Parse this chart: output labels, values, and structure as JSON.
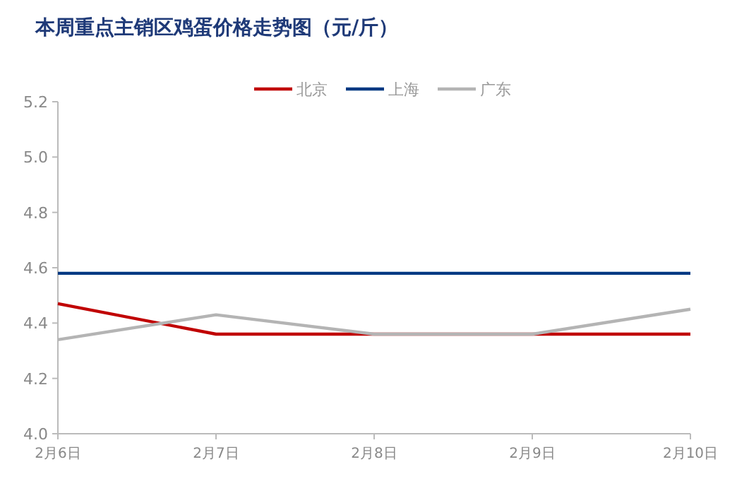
{
  "chart_data": {
    "type": "line",
    "title": "本周重点主销区鸡蛋价格走势图（元/斤）",
    "categories": [
      "2月6日",
      "2月7日",
      "2月8日",
      "2月9日",
      "2月10日"
    ],
    "series": [
      {
        "name": "北京",
        "color": "#c00000",
        "values": [
          4.47,
          4.36,
          4.36,
          4.36,
          4.36
        ]
      },
      {
        "name": "上海",
        "color": "#003882",
        "values": [
          4.58,
          4.58,
          4.58,
          4.58,
          4.58
        ]
      },
      {
        "name": "广东",
        "color": "#b4b4b4",
        "values": [
          4.34,
          4.43,
          4.36,
          4.36,
          4.45
        ]
      }
    ],
    "ylim": [
      4.0,
      5.2
    ],
    "yticks": [
      {
        "value": 4.0,
        "label": "4.0"
      },
      {
        "value": 4.2,
        "label": "4.2"
      },
      {
        "value": 4.4,
        "label": "4.4"
      },
      {
        "value": 4.6,
        "label": "4.6"
      },
      {
        "value": 4.8,
        "label": "4.8"
      },
      {
        "value": 5.0,
        "label": "5.0"
      },
      {
        "value": 5.2,
        "label": "5.2"
      }
    ],
    "grid": false,
    "legend": "top",
    "marker": "none"
  }
}
